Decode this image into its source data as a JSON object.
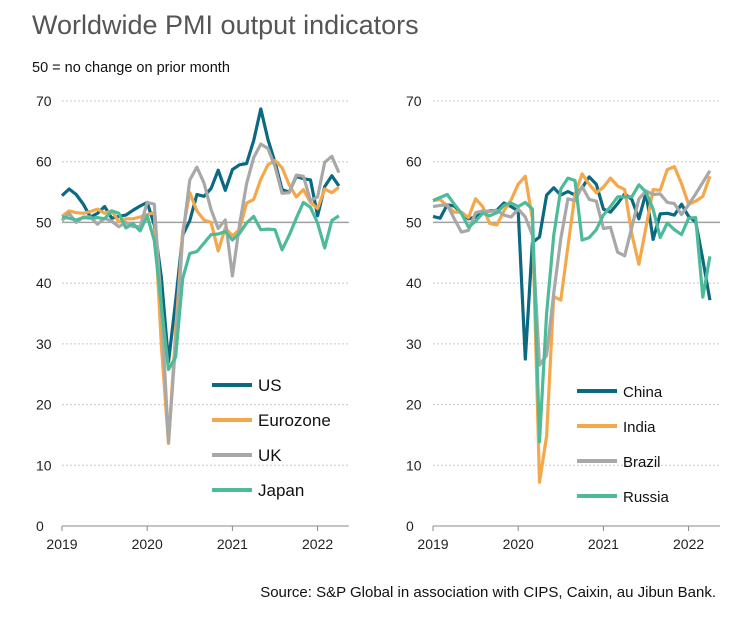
{
  "title": "Worldwide PMI output indicators",
  "subtitle": "50 = no change on prior month",
  "source": "Source: S&P Global in association with CIPS, Caixin, au Jibun Bank.",
  "chart_data": [
    {
      "type": "line",
      "x_start": "2019-01",
      "x_end": "2022-04",
      "frequency": "monthly",
      "xticks": [
        "2019",
        "2020",
        "2021",
        "2022"
      ],
      "yticks": [
        0,
        10,
        20,
        30,
        40,
        50,
        60,
        70
      ],
      "ylim": [
        0,
        70
      ],
      "grid": true,
      "reference_line": 50,
      "legend": "bottom-center",
      "series": [
        {
          "name": "US",
          "color": "#0b6a82",
          "values": [
            54.4,
            55.5,
            54.6,
            53.0,
            50.9,
            51.5,
            52.6,
            50.7,
            51.0,
            51.2,
            52.0,
            52.7,
            53.3,
            49.6,
            40.9,
            27.0,
            37.0,
            47.9,
            50.3,
            54.6,
            54.3,
            55.6,
            58.6,
            55.3,
            58.7,
            59.5,
            59.7,
            63.5,
            68.7,
            63.7,
            59.9,
            55.4,
            55.0,
            57.6,
            57.2,
            57.0,
            51.1,
            55.9,
            57.7,
            56.0
          ]
        },
        {
          "name": "Eurozone",
          "color": "#f4a84b",
          "values": [
            51.0,
            51.9,
            51.6,
            51.5,
            51.8,
            52.2,
            51.5,
            51.9,
            50.1,
            50.6,
            50.6,
            50.9,
            51.3,
            51.6,
            29.7,
            13.6,
            31.9,
            48.5,
            54.9,
            51.9,
            50.4,
            50.0,
            45.3,
            49.1,
            47.8,
            48.8,
            53.2,
            53.8,
            57.1,
            59.5,
            60.2,
            59.0,
            56.2,
            54.2,
            55.4,
            53.3,
            52.3,
            55.5,
            54.9,
            55.8
          ]
        },
        {
          "name": "UK",
          "color": "#a8a8a8",
          "values": [
            50.3,
            51.5,
            50.0,
            50.9,
            50.9,
            49.7,
            50.7,
            50.2,
            49.3,
            50.0,
            49.3,
            49.3,
            53.3,
            53.0,
            36.0,
            13.8,
            30.0,
            47.7,
            57.0,
            59.1,
            56.5,
            52.1,
            49.0,
            50.4,
            41.2,
            49.6,
            56.4,
            60.7,
            62.9,
            62.2,
            59.2,
            54.8,
            54.9,
            57.8,
            57.6,
            53.6,
            54.2,
            59.9,
            60.9,
            58.2
          ]
        },
        {
          "name": "Japan",
          "color": "#4dbb99",
          "values": [
            50.9,
            50.7,
            50.4,
            50.8,
            50.7,
            50.8,
            50.6,
            51.9,
            51.5,
            49.1,
            49.8,
            48.6,
            51.1,
            47.0,
            36.2,
            25.8,
            27.8,
            40.8,
            44.9,
            45.2,
            46.6,
            48.0,
            48.1,
            48.5,
            47.1,
            48.2,
            49.9,
            51.0,
            48.8,
            48.9,
            48.8,
            45.5,
            47.9,
            50.7,
            53.3,
            52.5,
            49.9,
            45.8,
            50.3,
            51.1
          ]
        }
      ]
    },
    {
      "type": "line",
      "x_start": "2019-01",
      "x_end": "2022-04",
      "frequency": "monthly",
      "xticks": [
        "2019",
        "2020",
        "2021",
        "2022"
      ],
      "yticks": [
        0,
        10,
        20,
        30,
        40,
        50,
        60,
        70
      ],
      "ylim": [
        0,
        70
      ],
      "grid": true,
      "reference_line": 50,
      "legend": "bottom-right",
      "series": [
        {
          "name": "China",
          "color": "#0b6a82",
          "values": [
            51.0,
            50.7,
            52.9,
            52.7,
            51.5,
            50.6,
            50.9,
            51.6,
            51.9,
            52.0,
            53.2,
            52.6,
            51.9,
            27.5,
            46.7,
            47.6,
            54.5,
            55.7,
            54.5,
            55.1,
            54.5,
            55.7,
            57.5,
            56.3,
            52.2,
            51.7,
            53.1,
            54.7,
            53.8,
            50.6,
            54.9,
            47.2,
            51.4,
            51.5,
            51.2,
            53.0,
            51.0,
            50.1,
            43.9,
            37.2
          ]
        },
        {
          "name": "India",
          "color": "#f4a84b",
          "values": [
            53.6,
            53.8,
            52.7,
            51.7,
            51.7,
            50.8,
            53.9,
            52.6,
            49.8,
            49.6,
            51.9,
            53.7,
            56.3,
            57.6,
            50.6,
            7.2,
            14.8,
            37.8,
            37.2,
            46.0,
            54.6,
            58.0,
            56.3,
            54.9,
            55.8,
            57.3,
            56.0,
            55.4,
            48.1,
            43.1,
            49.2,
            55.4,
            55.3,
            58.7,
            59.2,
            56.4,
            53.0,
            53.5,
            54.3,
            57.6
          ]
        },
        {
          "name": "Brazil",
          "color": "#a8a8a8",
          "values": [
            52.6,
            52.8,
            52.9,
            50.6,
            48.4,
            48.7,
            51.6,
            51.9,
            51.8,
            52.0,
            51.2,
            50.9,
            52.2,
            50.9,
            47.9,
            26.5,
            28.1,
            38.3,
            47.3,
            53.9,
            53.6,
            55.9,
            53.8,
            53.5,
            49.0,
            49.2,
            45.1,
            44.5,
            49.2,
            53.9,
            55.2,
            54.6,
            54.7,
            53.3,
            53.1,
            51.3,
            52.9,
            54.7,
            56.6,
            58.5
          ]
        },
        {
          "name": "Russia",
          "color": "#4dbb99",
          "values": [
            53.6,
            54.1,
            54.6,
            53.0,
            51.5,
            49.2,
            50.2,
            51.5,
            51.1,
            51.6,
            52.8,
            53.2,
            52.6,
            53.3,
            52.2,
            13.9,
            35.0,
            47.8,
            55.5,
            57.3,
            56.9,
            47.1,
            47.5,
            48.8,
            51.2,
            52.6,
            54.2,
            54.2,
            54.2,
            56.2,
            55.0,
            52.2,
            47.5,
            49.9,
            48.8,
            48.0,
            50.7,
            50.8,
            37.7,
            44.4
          ]
        }
      ]
    }
  ]
}
